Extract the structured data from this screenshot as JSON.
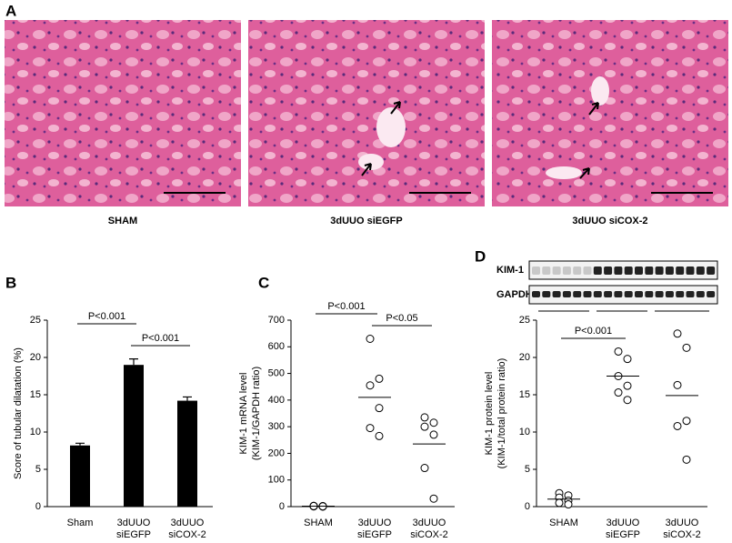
{
  "figure": {
    "panel_label": "A",
    "captions": [
      "SHAM",
      "3dUUO siEGFP",
      "3dUUO siCOX-2"
    ]
  },
  "chart_data": [
    {
      "type": "bar",
      "panel_label": "B",
      "y_label": [
        "Score of tubular dilatation (%)"
      ],
      "categories": [
        [
          "Sham"
        ],
        [
          "3dUUO",
          "siEGFP"
        ],
        [
          "3dUUO",
          "siCOX-2"
        ]
      ],
      "values": [
        8.2,
        19,
        14.2
      ],
      "errors": [
        0.3,
        0.8,
        0.5
      ],
      "color": "#000000",
      "ylim": [
        0,
        25
      ],
      "yticks": [
        0,
        5,
        10,
        15,
        20,
        25
      ],
      "annotations": [
        "P<0.001",
        "P<0.001"
      ]
    },
    {
      "type": "strip",
      "panel_label": "C",
      "y_label": [
        "KIM-1 mRNA level",
        "(KIM-1/GAPDH ratio)"
      ],
      "categories": [
        [
          "SHAM"
        ],
        [
          "3dUUO",
          "siEGFP"
        ],
        [
          "3dUUO",
          "siCOX-2"
        ]
      ],
      "groups": [
        [
          3,
          2,
          1,
          0,
          2,
          1
        ],
        [
          630,
          480,
          455,
          370,
          295,
          265
        ],
        [
          335,
          315,
          300,
          270,
          145,
          30
        ]
      ],
      "means": [
        1.5,
        410,
        235
      ],
      "ylim": [
        0,
        700
      ],
      "yticks": [
        0,
        100,
        200,
        300,
        400,
        500,
        600,
        700
      ],
      "annotations": [
        "P<0.001",
        "P<0.05"
      ]
    },
    {
      "type": "strip",
      "panel_label": "D",
      "y_label": [
        "KIM-1 protein level",
        "(KIM-1/total protein ratio)"
      ],
      "blot_labels": [
        "KIM-1",
        "GAPDH"
      ],
      "categories": [
        [
          "SHAM"
        ],
        [
          "3dUUO",
          "siEGFP"
        ],
        [
          "3dUUO",
          "siCOX-2"
        ]
      ],
      "groups": [
        [
          1.8,
          1.5,
          1.2,
          0.8,
          0.5,
          0.3
        ],
        [
          20.8,
          19.8,
          17.5,
          16.2,
          15.3,
          14.3
        ],
        [
          23.2,
          21.3,
          16.3,
          11.5,
          10.8,
          6.3
        ]
      ],
      "means": [
        1.0,
        17.5,
        14.9
      ],
      "ylim": [
        0,
        25
      ],
      "yticks": [
        0,
        5,
        10,
        15,
        20,
        25
      ],
      "annotations": [
        "P<0.001"
      ]
    }
  ]
}
